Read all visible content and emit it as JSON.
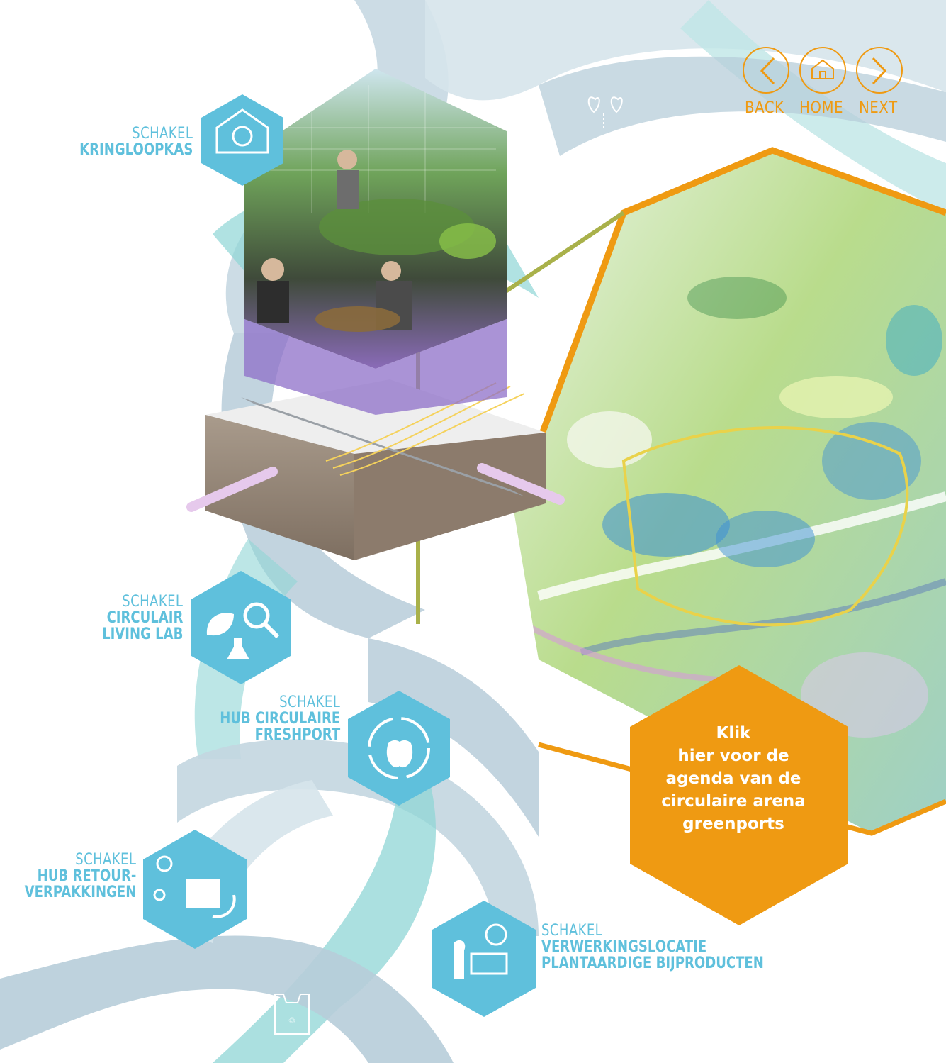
{
  "nav": {
    "back_label": "BACK",
    "home_label": "HOME",
    "next_label": "NEXT",
    "accent": "#ef9a12"
  },
  "schakels": [
    {
      "prefix": "SCHAKEL",
      "name": "KRINGLOOPKAS",
      "icon": "greenhouse-cycle-icon"
    },
    {
      "prefix": "SCHAKEL",
      "name_lines": [
        "CIRCULAIR",
        "LIVING LAB"
      ],
      "icon": "leaf-flask-magnifier-icon"
    },
    {
      "prefix": "SCHAKEL",
      "name_lines": [
        "HUB CIRCULAIRE",
        "FRESHPORT"
      ],
      "icon": "apple-hand-cycle-icon"
    },
    {
      "prefix": "SCHAKEL",
      "name_lines": [
        "HUB RETOUR-",
        "VERPAKKINGEN"
      ],
      "icon": "network-box-return-icon"
    },
    {
      "prefix": "SCHAKEL",
      "name_lines": [
        "VERWERKINGSLOCATIE",
        "PLANTAARDIGE BIJPRODUCTEN"
      ],
      "icon": "plant-factory-icon"
    }
  ],
  "cta": {
    "lines": [
      "Klik",
      "hier voor de",
      "agenda van de",
      "circulaire arena",
      "greenports"
    ],
    "color": "#ef9a12"
  },
  "colors": {
    "hex_blue": "#5fc0dc",
    "ribbon_grey": "#b7cdd9",
    "ribbon_teal": "#8fd6d6",
    "map_frame": "#ef9a12"
  }
}
